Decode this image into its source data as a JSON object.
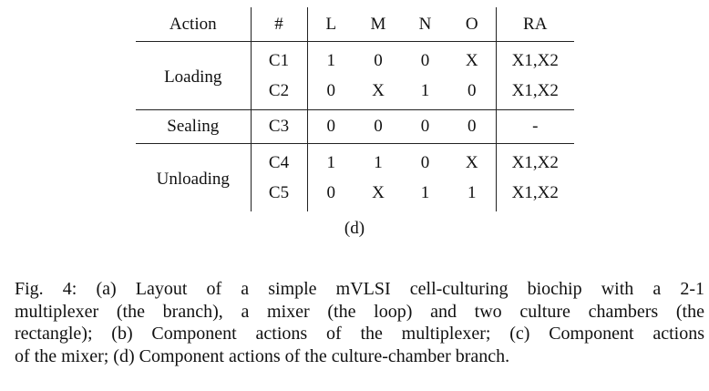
{
  "table": {
    "headers": [
      "Action",
      "#",
      "L",
      "M",
      "N",
      "O",
      "RA"
    ],
    "groups": [
      {
        "action": "Loading",
        "rows": [
          {
            "id": "C1",
            "L": "1",
            "M": "0",
            "N": "0",
            "O": "X",
            "RA": "X1,X2"
          },
          {
            "id": "C2",
            "L": "0",
            "M": "X",
            "N": "1",
            "O": "0",
            "RA": "X1,X2"
          }
        ]
      },
      {
        "action": "Sealing",
        "rows": [
          {
            "id": "C3",
            "L": "0",
            "M": "0",
            "N": "0",
            "O": "0",
            "RA": "-"
          }
        ]
      },
      {
        "action": "Unloading",
        "rows": [
          {
            "id": "C4",
            "L": "1",
            "M": "1",
            "N": "0",
            "O": "X",
            "RA": "X1,X2"
          },
          {
            "id": "C5",
            "L": "0",
            "M": "X",
            "N": "1",
            "O": "1",
            "RA": "X1,X2"
          }
        ]
      }
    ]
  },
  "subcaption": "(d)",
  "caption": {
    "lines": [
      "Fig. 4: (a) Layout of a simple mVLSI cell-culturing biochip with a 2-1",
      "multiplexer (the branch), a mixer (the loop) and two culture chambers (the",
      "rectangle); (b) Component actions of the multiplexer; (c) Component actions",
      "of the mixer; (d) Component actions of the culture-chamber branch."
    ]
  }
}
